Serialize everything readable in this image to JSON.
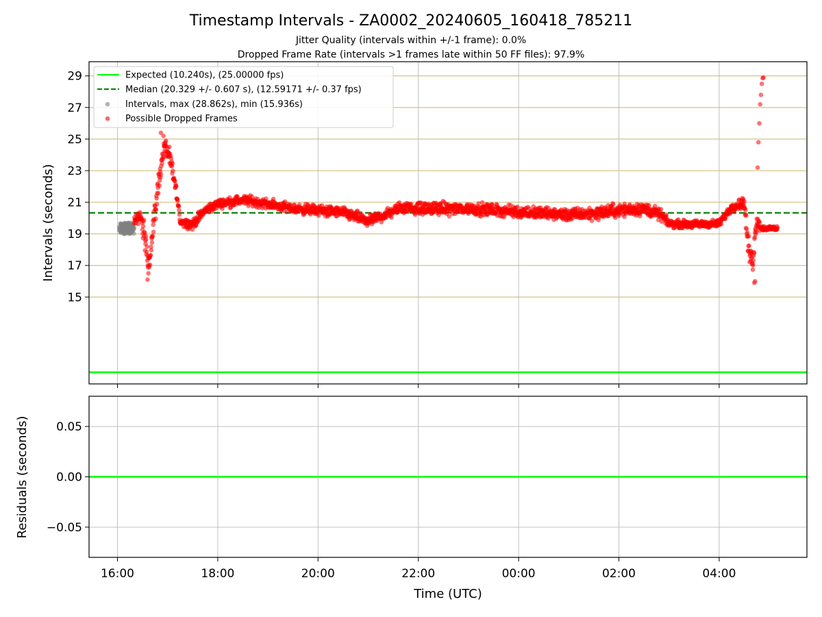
{
  "figure": {
    "title": "Timestamp Intervals - ZA0002_20240605_160418_785211",
    "subtitle_1": "Jitter Quality (intervals within +/-1 frame): 0.0%",
    "subtitle_2": "Dropped Frame Rate (intervals >1 frames late within 50 FF files): 97.9%",
    "xlabel": "Time (UTC)"
  },
  "chart_data": [
    {
      "type": "scatter",
      "ylabel": "Intervals (seconds)",
      "x_axis": {
        "kind": "time",
        "ticks": [
          "16:00",
          "18:00",
          "20:00",
          "22:00",
          "00:00",
          "02:00",
          "04:00"
        ],
        "range": [
          "15:26",
          "05:45"
        ]
      },
      "ylim": [
        9.5,
        29.9
      ],
      "yticks": [
        15,
        17,
        19,
        21,
        23,
        25,
        27,
        29
      ],
      "grid": true,
      "legend_position": "top-left",
      "colors": {
        "expected": "#00ff00",
        "median": "#008000",
        "intervals": "#808080",
        "dropped": "#ff0000",
        "hgrid": "#c8b46e",
        "vgrid": "#c0c0c0"
      },
      "expected": {
        "label": "Expected (10.240s), (25.00000 fps)",
        "value": 10.24
      },
      "median": {
        "label": "Median (20.329 +/- 0.607 s), (12.59171 +/- 0.37 fps)",
        "value": 20.329
      },
      "intervals_label": "Intervals, max (28.862s), min (15.936s)",
      "dropped_label": "Possible Dropped Frames",
      "normal_points": {
        "x_start": "16:02",
        "x_end": "16:20",
        "y_min": 19.0,
        "y_max": 19.7
      },
      "dropped_profile": [
        [
          "16:20",
          19.7,
          0.4
        ],
        [
          "16:27",
          20.2,
          0.7
        ],
        [
          "16:33",
          18.6,
          1.5
        ],
        [
          "16:38",
          17.2,
          1.0
        ],
        [
          "16:43",
          19.5,
          1.3
        ],
        [
          "16:50",
          22.6,
          1.0
        ],
        [
          "16:56",
          24.5,
          0.8
        ],
        [
          "17:00",
          24.2,
          0.8
        ],
        [
          "17:05",
          23.2,
          0.8
        ],
        [
          "17:10",
          21.8,
          0.6
        ],
        [
          "17:15",
          19.8,
          0.4
        ],
        [
          "17:30",
          19.6,
          0.45
        ],
        [
          "17:45",
          20.5,
          0.45
        ],
        [
          "18:00",
          20.9,
          0.4
        ],
        [
          "18:30",
          21.15,
          0.45
        ],
        [
          "19:00",
          20.9,
          0.45
        ],
        [
          "19:30",
          20.6,
          0.45
        ],
        [
          "20:00",
          20.5,
          0.5
        ],
        [
          "20:30",
          20.35,
          0.5
        ],
        [
          "21:00",
          19.8,
          0.5
        ],
        [
          "21:20",
          20.2,
          0.5
        ],
        [
          "21:40",
          20.7,
          0.5
        ],
        [
          "22:00",
          20.6,
          0.55
        ],
        [
          "23:00",
          20.6,
          0.55
        ],
        [
          "00:00",
          20.4,
          0.55
        ],
        [
          "00:30",
          20.3,
          0.55
        ],
        [
          "01:00",
          20.2,
          0.55
        ],
        [
          "01:30",
          20.3,
          0.6
        ],
        [
          "02:00",
          20.5,
          0.6
        ],
        [
          "02:30",
          20.6,
          0.6
        ],
        [
          "02:50",
          20.2,
          0.5
        ],
        [
          "03:00",
          19.65,
          0.35
        ],
        [
          "03:30",
          19.6,
          0.35
        ],
        [
          "04:00",
          19.65,
          0.35
        ],
        [
          "04:15",
          20.7,
          0.4
        ],
        [
          "04:30",
          21.0,
          0.5
        ],
        [
          "04:35",
          18.0,
          1.3
        ],
        [
          "04:40",
          17.2,
          1.0
        ],
        [
          "04:45",
          20.0,
          1.0
        ],
        [
          "04:50",
          19.35,
          0.25
        ],
        [
          "05:10",
          19.35,
          0.25
        ]
      ],
      "dropped_outliers": [
        [
          "16:52",
          25.4
        ],
        [
          "16:55",
          25.2
        ],
        [
          "16:58",
          24.9
        ],
        [
          "17:02",
          24.0
        ],
        [
          "04:46",
          23.2
        ],
        [
          "04:47",
          24.8
        ],
        [
          "04:48",
          26.0
        ],
        [
          "04:49",
          27.2
        ],
        [
          "04:50",
          27.8
        ],
        [
          "04:51",
          28.5
        ],
        [
          "04:52",
          28.86
        ],
        [
          "04:53",
          28.9
        ],
        [
          "04:43",
          16.0
        ],
        [
          "04:42",
          15.9
        ],
        [
          "16:36",
          16.1
        ],
        [
          "16:37",
          16.5
        ]
      ]
    },
    {
      "type": "line",
      "ylabel": "Residuals (seconds)",
      "ylim": [
        -0.08,
        0.08
      ],
      "yticks": [
        "0.05",
        "0.00",
        "−0.05"
      ],
      "ytick_values": [
        0.05,
        0.0,
        -0.05
      ],
      "series": [
        {
          "y": 0.0,
          "color": "#00ff00"
        }
      ],
      "grid": true
    }
  ]
}
